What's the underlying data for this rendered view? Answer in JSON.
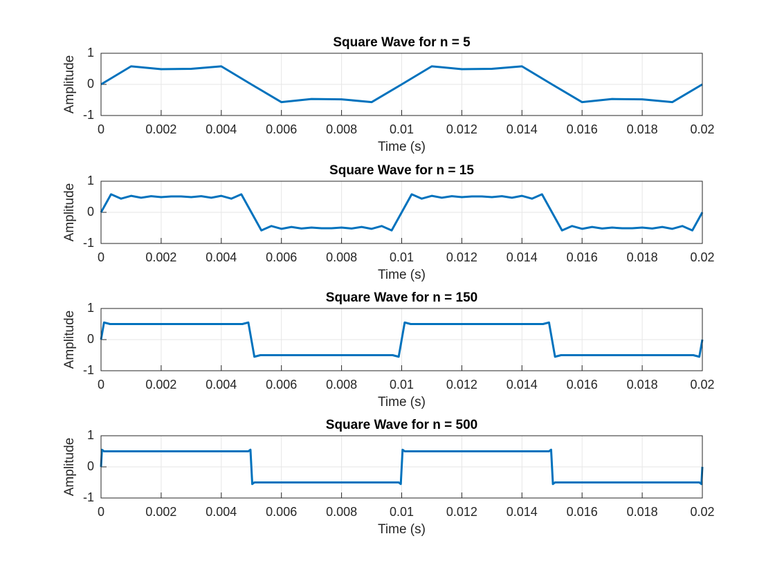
{
  "chart_data": [
    {
      "type": "line",
      "title": "Square Wave for n = 5",
      "xlabel": "Time (s)",
      "ylabel": "Amplitude",
      "color": "#0072bd",
      "grid": true,
      "xlim": [
        0,
        0.02
      ],
      "ylim": [
        -1,
        1
      ],
      "xticks": [
        0,
        0.002,
        0.004,
        0.006,
        0.008,
        0.01,
        0.012,
        0.014,
        0.016,
        0.018,
        0.02
      ],
      "yticks": [
        -1,
        0,
        1
      ],
      "x": [
        0,
        0.001,
        0.002,
        0.003,
        0.004,
        0.005,
        0.006,
        0.007,
        0.008,
        0.009,
        0.01,
        0.011,
        0.012,
        0.013,
        0.014,
        0.015,
        0.016,
        0.017,
        0.018,
        0.019,
        0.02
      ],
      "values": [
        0,
        0.58,
        0.49,
        0.5,
        0.58,
        0,
        -0.57,
        -0.47,
        -0.48,
        -0.57,
        0,
        0.58,
        0.49,
        0.5,
        0.58,
        0,
        -0.57,
        -0.47,
        -0.48,
        -0.57,
        0
      ]
    },
    {
      "type": "line",
      "title": "Square Wave for n = 15",
      "xlabel": "Time (s)",
      "ylabel": "Amplitude",
      "color": "#0072bd",
      "grid": true,
      "xlim": [
        0,
        0.02
      ],
      "ylim": [
        -1,
        1
      ],
      "xticks": [
        0,
        0.002,
        0.004,
        0.006,
        0.008,
        0.01,
        0.012,
        0.014,
        0.016,
        0.018,
        0.02
      ],
      "yticks": [
        -1,
        0,
        1
      ],
      "x": [
        0,
        0.000333,
        0.000667,
        0.001,
        0.001333,
        0.001667,
        0.002,
        0.002333,
        0.002667,
        0.003,
        0.003333,
        0.003667,
        0.004,
        0.004333,
        0.004667,
        0.005,
        0.005333,
        0.005667,
        0.006,
        0.006333,
        0.006667,
        0.007,
        0.007333,
        0.007667,
        0.008,
        0.008333,
        0.008667,
        0.009,
        0.009333,
        0.009667,
        0.01,
        0.010333,
        0.010667,
        0.011,
        0.011333,
        0.011667,
        0.012,
        0.012333,
        0.012667,
        0.013,
        0.013333,
        0.013667,
        0.014,
        0.014333,
        0.014667,
        0.015,
        0.015333,
        0.015667,
        0.016,
        0.016333,
        0.016667,
        0.017,
        0.017333,
        0.017667,
        0.018,
        0.018333,
        0.018667,
        0.019,
        0.019333,
        0.019667,
        0.02
      ],
      "values": [
        0,
        0.58,
        0.44,
        0.53,
        0.47,
        0.52,
        0.49,
        0.51,
        0.51,
        0.49,
        0.52,
        0.47,
        0.53,
        0.44,
        0.58,
        0,
        -0.58,
        -0.44,
        -0.53,
        -0.47,
        -0.52,
        -0.49,
        -0.51,
        -0.51,
        -0.49,
        -0.52,
        -0.47,
        -0.53,
        -0.44,
        -0.58,
        0,
        0.58,
        0.44,
        0.53,
        0.47,
        0.52,
        0.49,
        0.51,
        0.51,
        0.49,
        0.52,
        0.47,
        0.53,
        0.44,
        0.58,
        0,
        -0.58,
        -0.44,
        -0.53,
        -0.47,
        -0.52,
        -0.49,
        -0.51,
        -0.51,
        -0.49,
        -0.52,
        -0.47,
        -0.53,
        -0.44,
        -0.58,
        0
      ]
    },
    {
      "type": "line",
      "title": "Square Wave for n = 150",
      "xlabel": "Time (s)",
      "ylabel": "Amplitude",
      "color": "#0072bd",
      "grid": true,
      "xlim": [
        0,
        0.02
      ],
      "ylim": [
        -1,
        1
      ],
      "xticks": [
        0,
        0.002,
        0.004,
        0.006,
        0.008,
        0.01,
        0.012,
        0.014,
        0.016,
        0.018,
        0.02
      ],
      "yticks": [
        -1,
        0,
        1
      ],
      "x": [
        0,
        0.0001,
        0.0003,
        0.0047,
        0.0049,
        0.005,
        0.0051,
        0.0053,
        0.0097,
        0.0099,
        0.01,
        0.0101,
        0.0103,
        0.0147,
        0.0149,
        0.015,
        0.0151,
        0.0153,
        0.0197,
        0.0199,
        0.02
      ],
      "values": [
        0,
        0.55,
        0.5,
        0.5,
        0.55,
        0,
        -0.55,
        -0.5,
        -0.5,
        -0.55,
        0,
        0.55,
        0.5,
        0.5,
        0.55,
        0,
        -0.55,
        -0.5,
        -0.5,
        -0.55,
        0
      ]
    },
    {
      "type": "line",
      "title": "Square Wave for n = 500",
      "xlabel": "Time (s)",
      "ylabel": "Amplitude",
      "color": "#0072bd",
      "grid": true,
      "xlim": [
        0,
        0.02
      ],
      "ylim": [
        -1,
        1
      ],
      "xticks": [
        0,
        0.002,
        0.004,
        0.006,
        0.008,
        0.01,
        0.012,
        0.014,
        0.016,
        0.018,
        0.02
      ],
      "yticks": [
        -1,
        0,
        1
      ],
      "x": [
        0,
        3e-05,
        0.0001,
        0.0049,
        0.00497,
        0.005,
        0.00503,
        0.0051,
        0.0099,
        0.00997,
        0.01,
        0.01003,
        0.0101,
        0.0149,
        0.01497,
        0.015,
        0.01503,
        0.0151,
        0.0199,
        0.01997,
        0.02
      ],
      "values": [
        0,
        0.55,
        0.5,
        0.5,
        0.55,
        0,
        -0.55,
        -0.5,
        -0.5,
        -0.55,
        0,
        0.55,
        0.5,
        0.5,
        0.55,
        0,
        -0.55,
        -0.5,
        -0.5,
        -0.55,
        0
      ]
    }
  ]
}
